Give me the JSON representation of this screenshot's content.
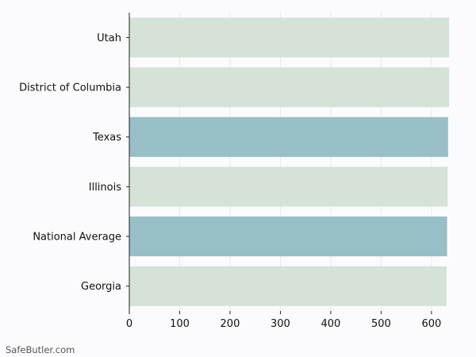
{
  "chart_data": {
    "type": "bar",
    "orientation": "horizontal",
    "categories": [
      "Utah",
      "District of Columbia",
      "Texas",
      "Illinois",
      "National Average",
      "Georgia"
    ],
    "values": [
      635,
      635,
      633,
      632,
      631,
      630
    ],
    "bar_colors": [
      "#d4e2d8",
      "#d4e2d8",
      "#98bec6",
      "#d4e2d8",
      "#98bec6",
      "#d4e2d8"
    ],
    "xlim": [
      0,
      640
    ],
    "xticks": [
      0,
      100,
      200,
      300,
      400,
      500,
      600
    ],
    "grid": true,
    "title": "",
    "xlabel": "",
    "ylabel": ""
  },
  "watermark": "SafeButler.com",
  "colors": {
    "background": "#fbfbfd",
    "grid": "#e8e8e8",
    "axis": "#222222"
  }
}
